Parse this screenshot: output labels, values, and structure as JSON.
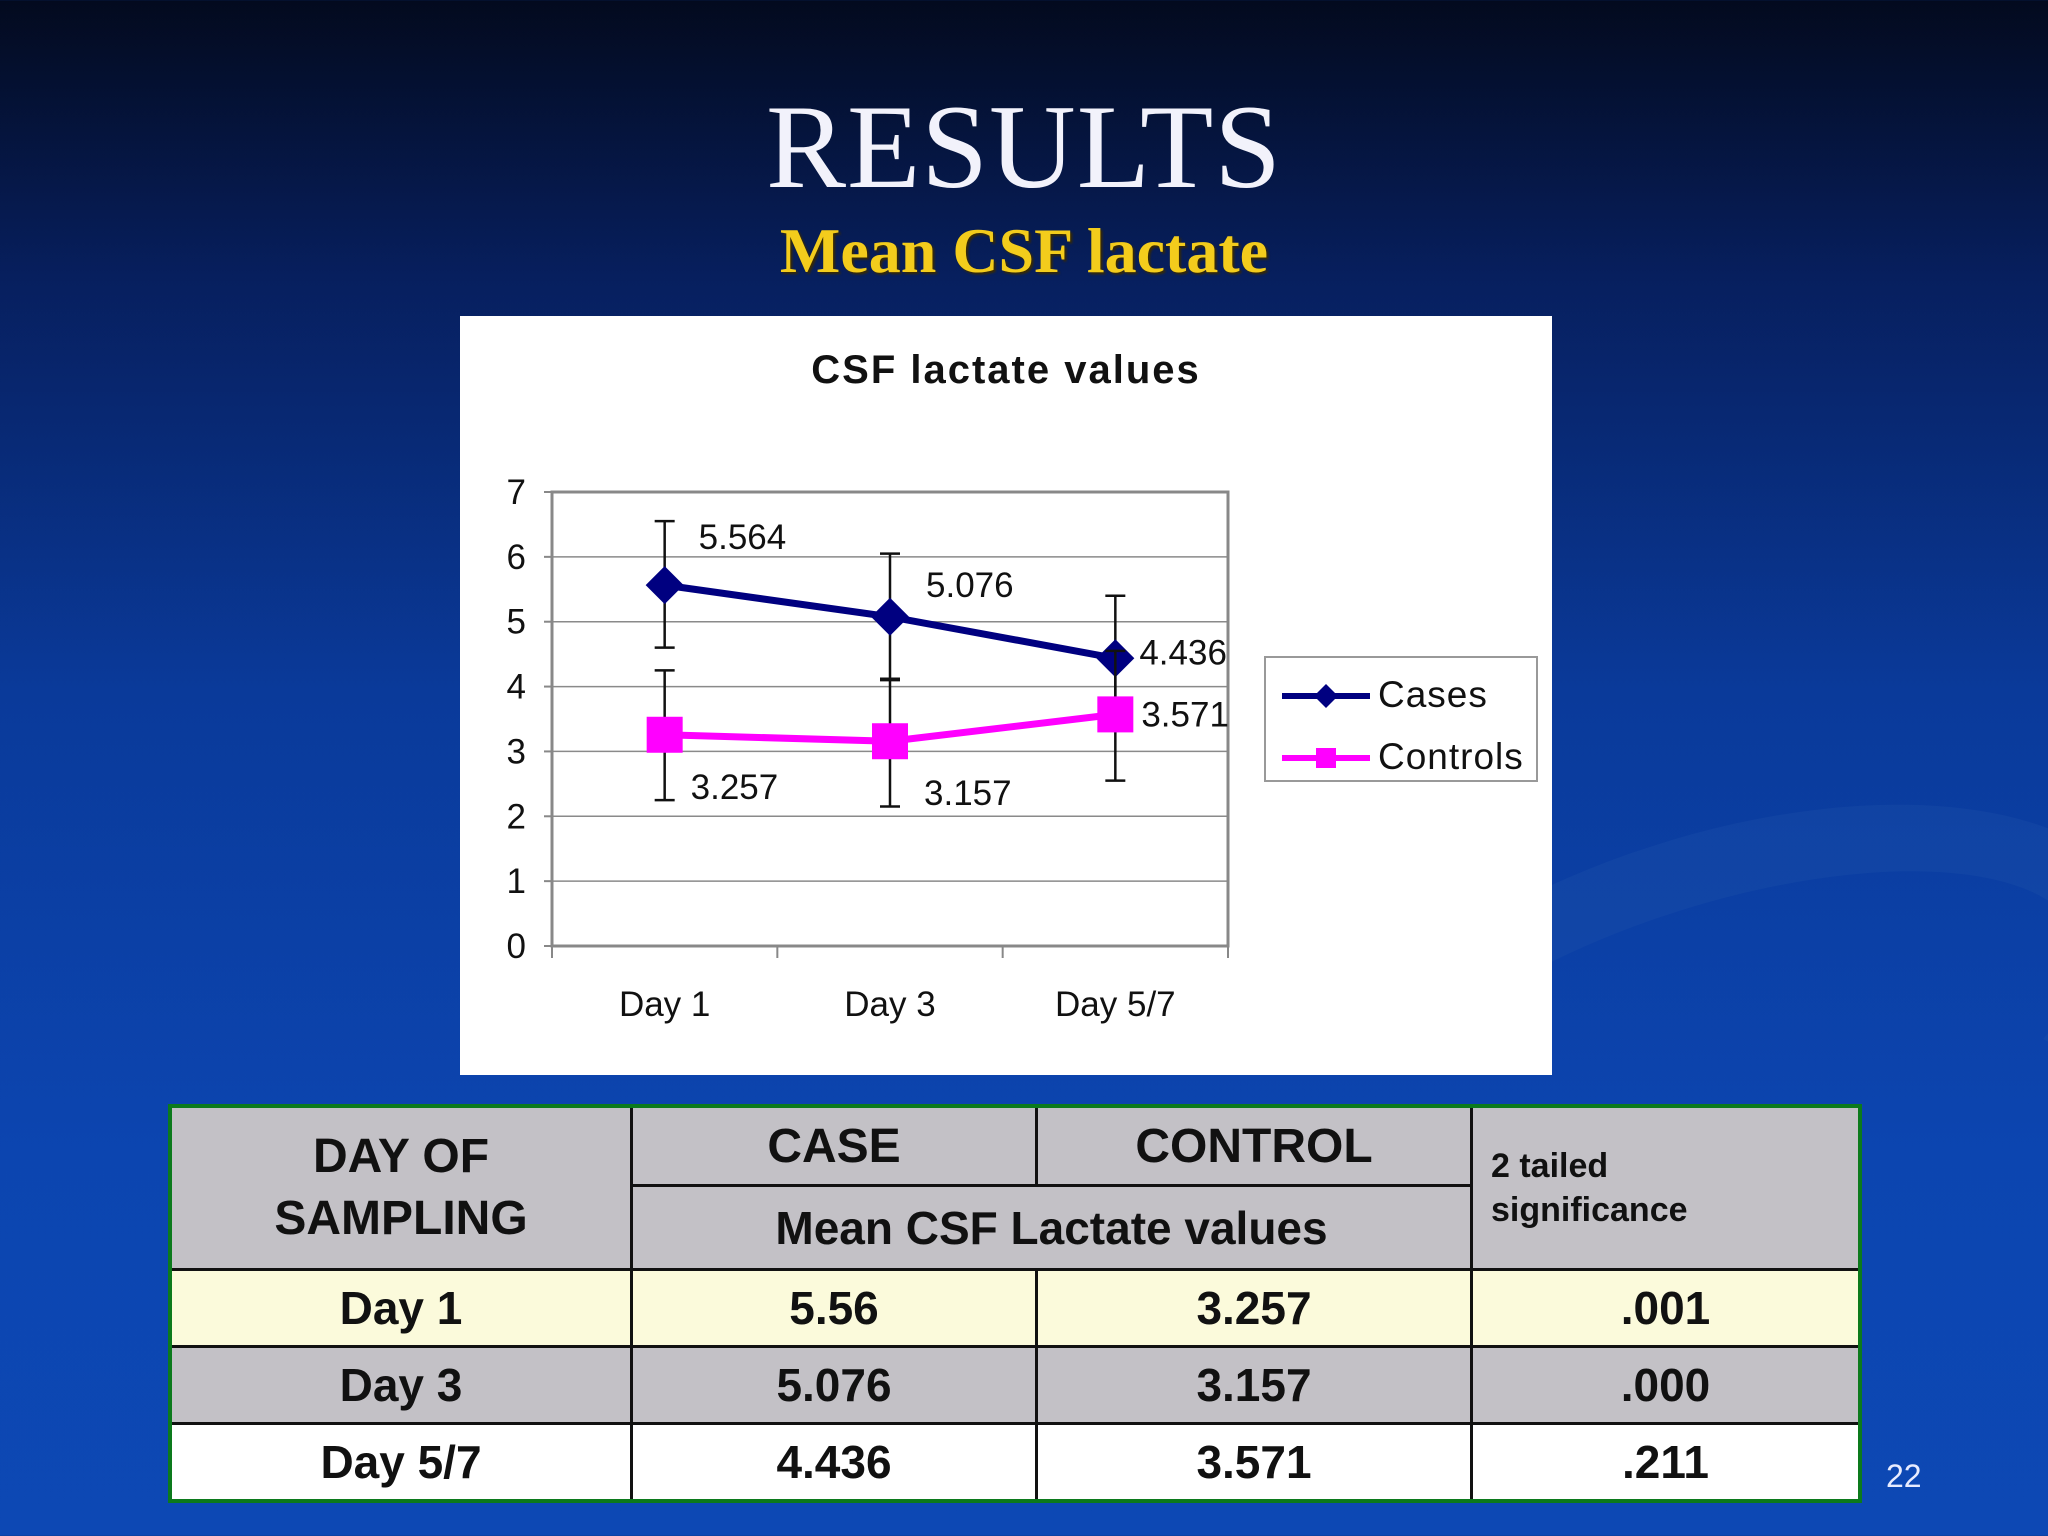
{
  "slide": {
    "title": "RESULTS",
    "subtitle": "Mean CSF lactate",
    "page_number": "22"
  },
  "chart_data": {
    "type": "line",
    "title": "CSF lactate values",
    "categories": [
      "Day 1",
      "Day 3",
      "Day 5/7"
    ],
    "ylim": [
      0,
      7
    ],
    "yticks": [
      "0",
      "1",
      "2",
      "3",
      "4",
      "5",
      "6",
      "7"
    ],
    "grid": true,
    "legend_position": "right",
    "series": [
      {
        "name": "Cases",
        "color": "#000080",
        "marker": "diamond",
        "values": [
          5.564,
          5.076,
          4.436
        ],
        "labels": [
          "5.564",
          "5.076",
          "4.436"
        ],
        "error_low": [
          4.6,
          4.1,
          3.4
        ],
        "error_high": [
          6.55,
          6.05,
          5.4
        ]
      },
      {
        "name": "Controls",
        "color": "#ff00ff",
        "marker": "square",
        "values": [
          3.257,
          3.157,
          3.571
        ],
        "labels": [
          "3.257",
          "3.157",
          "3.571"
        ],
        "error_low": [
          2.25,
          2.15,
          2.55
        ],
        "error_high": [
          4.25,
          4.12,
          4.55
        ]
      }
    ]
  },
  "table": {
    "header": {
      "day_col": [
        "DAY OF",
        "SAMPLING"
      ],
      "case": "CASE",
      "control": "CONTROL",
      "merged": "Mean CSF Lactate values",
      "significance": [
        "2 tailed",
        "significance"
      ]
    },
    "rows": [
      {
        "day": "Day 1",
        "case": "5.56",
        "control": "3.257",
        "sig": ".001"
      },
      {
        "day": "Day 3",
        "case": "5.076",
        "control": "3.157",
        "sig": ".000"
      },
      {
        "day": "Day 5/7",
        "case": "4.436",
        "control": "3.571",
        "sig": ".211"
      }
    ]
  }
}
